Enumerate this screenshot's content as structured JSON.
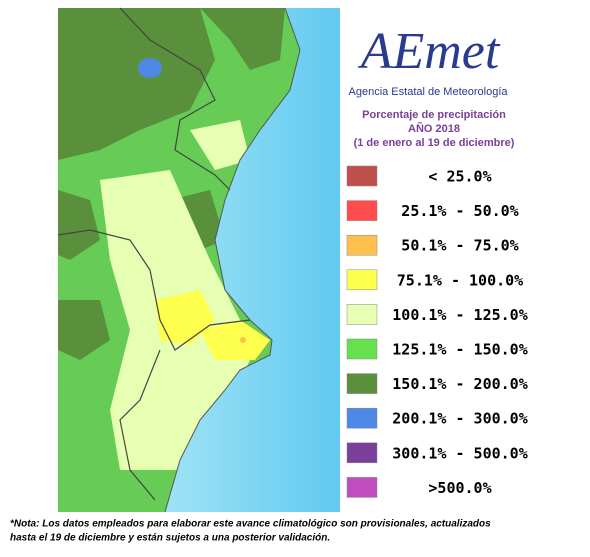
{
  "logo": {
    "name": "AEmet",
    "subtitle": "Agencia Estatal de Meteorología"
  },
  "title": [
    "Porcentaje de precipitación",
    "AÑO 2018",
    "(1 de enero al 19 de diciembre)"
  ],
  "legend": [
    {
      "color": "#c0504d",
      "label": "< 25.0%"
    },
    {
      "color": "#ff4d4d",
      "label": "25.1% - 50.0%"
    },
    {
      "color": "#ffc04d",
      "label": "50.1% - 75.0%"
    },
    {
      "color": "#ffff4d",
      "label": "75.1% - 100.0%"
    },
    {
      "color": "#e6ffb3",
      "label": "100.1% - 125.0%"
    },
    {
      "color": "#66e04d",
      "label": "125.1% - 150.0%"
    },
    {
      "color": "#5a8f3c",
      "label": "150.1% - 200.0%"
    },
    {
      "color": "#4d88e6",
      "label": "200.1% - 300.0%"
    },
    {
      "color": "#7a3f9a",
      "label": "300.1% - 500.0%"
    },
    {
      "color": "#c04dbd",
      "label": ">500.0%"
    }
  ],
  "note": [
    "*Nota: Los datos empleados para elaborar este avance climatológico son provisionales, actualizados",
    "hasta el 19 de diciembre y están sujetos a una posterior validación."
  ]
}
